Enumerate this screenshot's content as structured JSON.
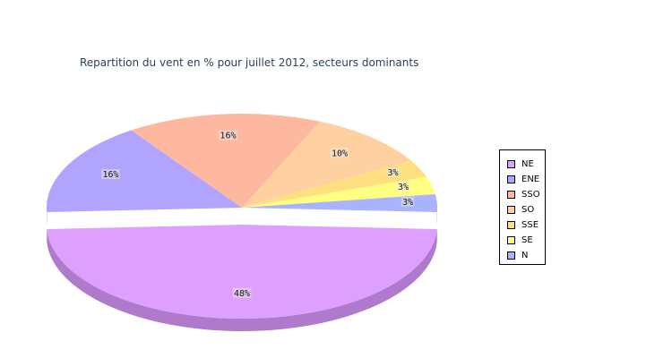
{
  "chart_data": {
    "type": "pie",
    "title": "Repartition du vent en % pour juillet 2012, secteurs dominants",
    "exploded": "NE",
    "legend_position": "right",
    "slices": [
      {
        "name": "NE",
        "value": 48,
        "label": "48%",
        "color": "#dda0ff",
        "side_color": "#b07acc"
      },
      {
        "name": "ENE",
        "value": 16,
        "label": "16%",
        "color": "#b0a4ff",
        "side_color": "#7f78d6"
      },
      {
        "name": "SSO",
        "value": 16,
        "label": "16%",
        "color": "#ffb8a0",
        "side_color": "#d49680"
      },
      {
        "name": "SO",
        "value": 10,
        "label": "10%",
        "color": "#ffd0a0",
        "side_color": "#d4ab80"
      },
      {
        "name": "SSE",
        "value": 3,
        "label": "3%",
        "color": "#ffe080",
        "side_color": "#d4b860"
      },
      {
        "name": "SE",
        "value": 3,
        "label": "3%",
        "color": "#ffff80",
        "side_color": "#d4d460"
      },
      {
        "name": "N",
        "value": 3,
        "label": "3%",
        "color": "#a8b4ff",
        "side_color": "#7f86d6"
      }
    ]
  }
}
